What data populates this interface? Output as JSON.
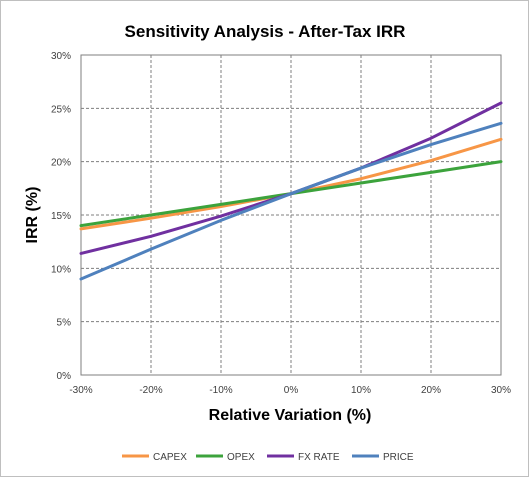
{
  "chart_data": {
    "type": "line",
    "title": "Sensitivity Analysis - After-Tax IRR",
    "xlabel": "Relative Variation (%)",
    "ylabel": "IRR (%)",
    "x": [
      -30,
      -20,
      -10,
      0,
      10,
      20,
      30
    ],
    "x_tick_labels": [
      "-30%",
      "-20%",
      "-10%",
      "0%",
      "10%",
      "20%",
      "30%"
    ],
    "y_tick_values": [
      0,
      5,
      10,
      15,
      20,
      25,
      30
    ],
    "y_tick_labels": [
      "0%",
      "5%",
      "10%",
      "15%",
      "20%",
      "25%",
      "30%"
    ],
    "xlim": [
      -30,
      30
    ],
    "ylim": [
      0,
      30
    ],
    "grid": true,
    "legend_position": "bottom",
    "series": [
      {
        "name": "CAPEX",
        "color": "#F79646",
        "values": [
          13.7,
          14.7,
          15.8,
          17.0,
          18.4,
          20.1,
          22.1
        ]
      },
      {
        "name": "OPEX",
        "color": "#3CA33C",
        "values": [
          14.0,
          15.0,
          16.0,
          17.0,
          18.0,
          19.0,
          20.0
        ]
      },
      {
        "name": "FX RATE",
        "color": "#7030A0",
        "values": [
          11.4,
          13.0,
          14.9,
          17.0,
          19.4,
          22.2,
          25.5
        ]
      },
      {
        "name": "PRICE",
        "color": "#4F81BD",
        "values": [
          9.0,
          11.8,
          14.5,
          17.0,
          19.4,
          21.6,
          23.6
        ]
      }
    ]
  }
}
